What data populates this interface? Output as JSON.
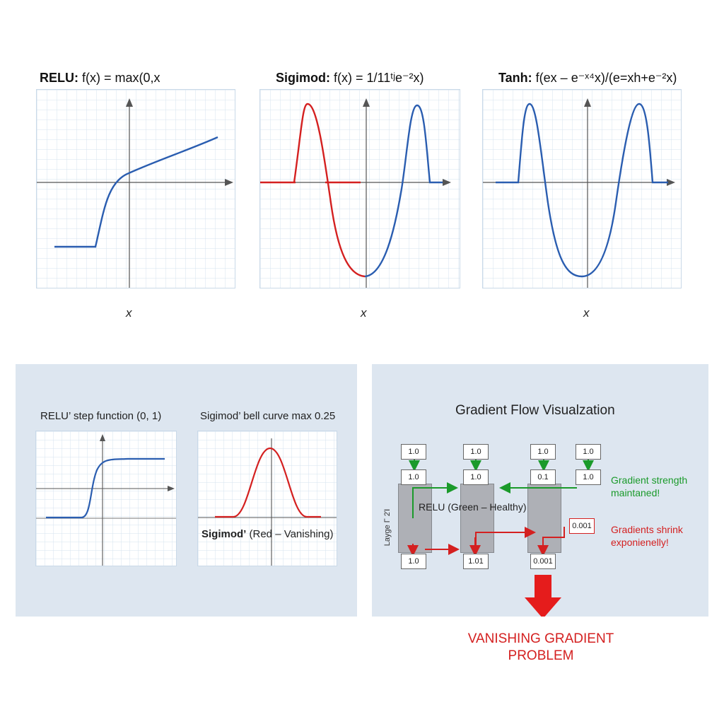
{
  "top_plots": [
    {
      "label": "RELU:",
      "formula": "f(x) = max(0,x",
      "xlabel": "x",
      "color": "#2a5db0"
    },
    {
      "label": "Sigimod:",
      "formula": "f(x) = 1/11ᵗʲe⁻²x)",
      "xlabel": "x",
      "color_a": "#d42020",
      "color_b": "#2a5db0"
    },
    {
      "label": "Tanh:",
      "formula": "f(ex – e⁻ˣ⁴x)/(e=xh+e⁻²x)",
      "xlabel": "x",
      "color": "#2a5db0"
    }
  ],
  "derivatives_panel": {
    "relu_title": "RELU’ step function (0, 1)",
    "sigmoid_title": "Sigimod’ bell curve max 0.25",
    "sigmoid_label_bold": "Sigimod’",
    "sigmoid_label_rest": " (Red – Vanishing)"
  },
  "gradient_panel": {
    "title": "Gradient Flow Visualzation",
    "layer_label": "Layge Γ 2Ί",
    "relu_label": "RELU (Green – Healthy)",
    "top_boxes": [
      "1.0",
      "1.0",
      "1.0",
      "1.0"
    ],
    "second_boxes": [
      "1.0",
      "1.0",
      "0.1",
      "1.0"
    ],
    "bottom_boxes": [
      "1.0",
      "1.01",
      "0.001"
    ],
    "red_box": "0.001",
    "green_note": [
      "Gradient strength",
      "maintaned!"
    ],
    "red_note": [
      "Gradients shrink",
      "exponienelly!"
    ]
  },
  "problem": [
    "VANISHING GRADIENT",
    "PROBLEM"
  ],
  "colors": {
    "blue": "#2a5db0",
    "red": "#d42020",
    "green": "#1a9a2a",
    "panel": "#dde6f0",
    "grid": "#c9d9e8"
  }
}
